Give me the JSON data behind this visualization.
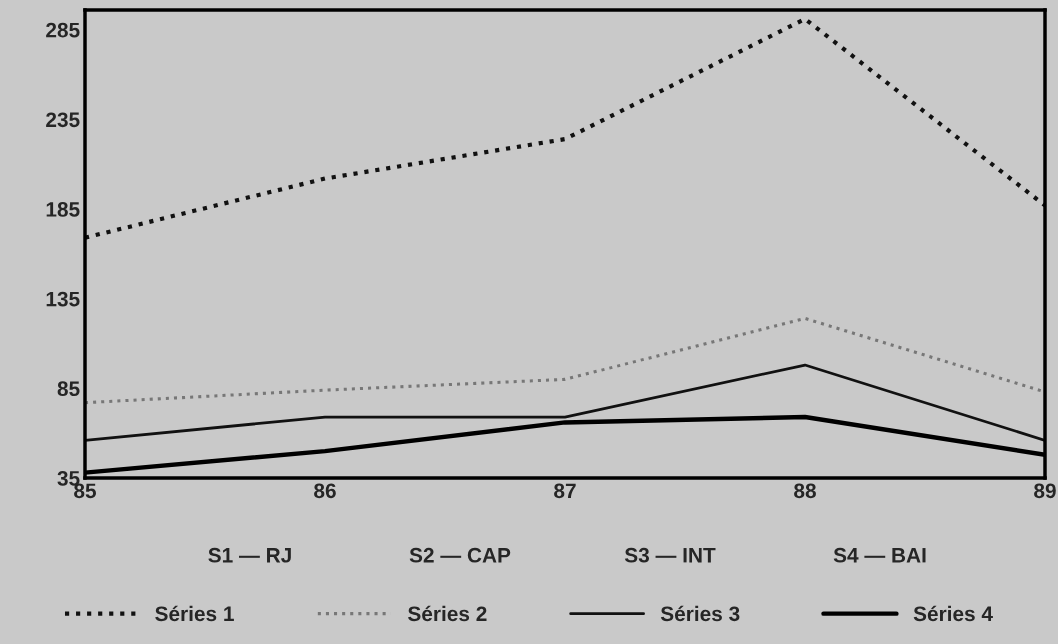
{
  "chart_data": {
    "type": "line",
    "x": [
      85,
      86,
      87,
      88,
      89
    ],
    "xlim": [
      85,
      89
    ],
    "xticks": [
      85,
      86,
      87,
      88,
      89
    ],
    "ylim": [
      35,
      296
    ],
    "yticks": [
      35,
      85,
      135,
      185,
      235,
      285
    ],
    "series": [
      {
        "name": "Séries 1",
        "color": "#111111",
        "line_style": "dotted",
        "values": [
          169,
          202,
          224,
          291,
          187
        ]
      },
      {
        "name": "Séries 2",
        "color": "#777777",
        "line_style": "dotted",
        "values": [
          77,
          84,
          90,
          124,
          83
        ]
      },
      {
        "name": "Séries 3",
        "color": "#111111",
        "line_style": "solid",
        "values": [
          56,
          69,
          69,
          98,
          56
        ]
      },
      {
        "name": "Séries 4",
        "color": "#000000",
        "line_style": "solid",
        "values": [
          38,
          50,
          66,
          69,
          48
        ]
      }
    ],
    "annotations": [
      "S1 — RJ",
      "S2 — CAP",
      "S3 — INT",
      "S4 — BAI"
    ],
    "legend": "bottom"
  }
}
